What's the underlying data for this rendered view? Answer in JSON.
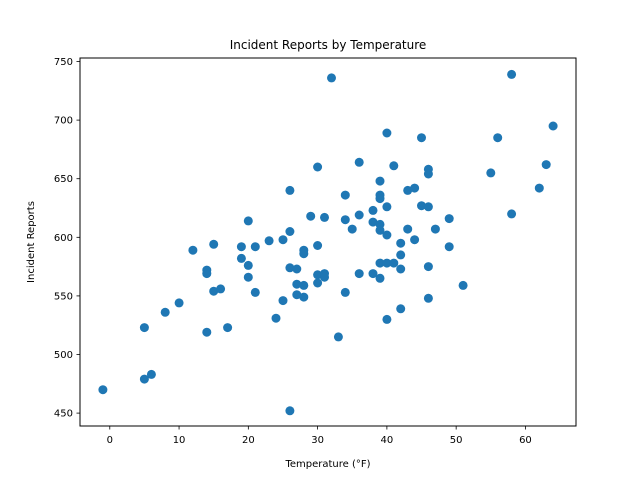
{
  "chart_data": {
    "type": "scatter",
    "title": "Incident Reports by Temperature",
    "xlabel": "Temperature (°F)",
    "ylabel": "Incident Reports",
    "xlim": [
      -4.3,
      67.3
    ],
    "ylim": [
      439,
      753
    ],
    "xticks": [
      0,
      10,
      20,
      30,
      40,
      50,
      60
    ],
    "yticks": [
      450,
      500,
      550,
      600,
      650,
      700,
      750
    ],
    "grid": false,
    "marker_color": "#1f77b4",
    "series": [
      {
        "points": [
          {
            "x": -1,
            "y": 470
          },
          {
            "x": 5,
            "y": 523
          },
          {
            "x": 5,
            "y": 479
          },
          {
            "x": 6,
            "y": 483
          },
          {
            "x": 8,
            "y": 536
          },
          {
            "x": 10,
            "y": 544
          },
          {
            "x": 12,
            "y": 589
          },
          {
            "x": 14,
            "y": 572
          },
          {
            "x": 14,
            "y": 569
          },
          {
            "x": 14,
            "y": 519
          },
          {
            "x": 15,
            "y": 594
          },
          {
            "x": 15,
            "y": 554
          },
          {
            "x": 16,
            "y": 556
          },
          {
            "x": 17,
            "y": 523
          },
          {
            "x": 19,
            "y": 592
          },
          {
            "x": 19,
            "y": 582
          },
          {
            "x": 20,
            "y": 614
          },
          {
            "x": 20,
            "y": 576
          },
          {
            "x": 20,
            "y": 566
          },
          {
            "x": 21,
            "y": 592
          },
          {
            "x": 21,
            "y": 553
          },
          {
            "x": 23,
            "y": 597
          },
          {
            "x": 24,
            "y": 531
          },
          {
            "x": 25,
            "y": 598
          },
          {
            "x": 25,
            "y": 546
          },
          {
            "x": 26,
            "y": 640
          },
          {
            "x": 26,
            "y": 605
          },
          {
            "x": 26,
            "y": 574
          },
          {
            "x": 26,
            "y": 452
          },
          {
            "x": 27,
            "y": 573
          },
          {
            "x": 27,
            "y": 560
          },
          {
            "x": 27,
            "y": 551
          },
          {
            "x": 28,
            "y": 589
          },
          {
            "x": 28,
            "y": 586
          },
          {
            "x": 28,
            "y": 559
          },
          {
            "x": 28,
            "y": 549
          },
          {
            "x": 29,
            "y": 618
          },
          {
            "x": 30,
            "y": 660
          },
          {
            "x": 30,
            "y": 593
          },
          {
            "x": 30,
            "y": 568
          },
          {
            "x": 30,
            "y": 561
          },
          {
            "x": 31,
            "y": 617
          },
          {
            "x": 31,
            "y": 569
          },
          {
            "x": 31,
            "y": 566
          },
          {
            "x": 32,
            "y": 736
          },
          {
            "x": 33,
            "y": 515
          },
          {
            "x": 34,
            "y": 636
          },
          {
            "x": 34,
            "y": 615
          },
          {
            "x": 34,
            "y": 553
          },
          {
            "x": 35,
            "y": 607
          },
          {
            "x": 36,
            "y": 664
          },
          {
            "x": 36,
            "y": 619
          },
          {
            "x": 36,
            "y": 569
          },
          {
            "x": 38,
            "y": 623
          },
          {
            "x": 38,
            "y": 613
          },
          {
            "x": 38,
            "y": 569
          },
          {
            "x": 39,
            "y": 648
          },
          {
            "x": 39,
            "y": 636
          },
          {
            "x": 39,
            "y": 633
          },
          {
            "x": 39,
            "y": 611
          },
          {
            "x": 39,
            "y": 606
          },
          {
            "x": 39,
            "y": 578
          },
          {
            "x": 39,
            "y": 565
          },
          {
            "x": 40,
            "y": 689
          },
          {
            "x": 40,
            "y": 626
          },
          {
            "x": 40,
            "y": 602
          },
          {
            "x": 40,
            "y": 578
          },
          {
            "x": 40,
            "y": 530
          },
          {
            "x": 41,
            "y": 661
          },
          {
            "x": 41,
            "y": 578
          },
          {
            "x": 42,
            "y": 595
          },
          {
            "x": 42,
            "y": 585
          },
          {
            "x": 42,
            "y": 573
          },
          {
            "x": 42,
            "y": 539
          },
          {
            "x": 43,
            "y": 640
          },
          {
            "x": 43,
            "y": 607
          },
          {
            "x": 44,
            "y": 642
          },
          {
            "x": 44,
            "y": 598
          },
          {
            "x": 45,
            "y": 685
          },
          {
            "x": 45,
            "y": 627
          },
          {
            "x": 46,
            "y": 658
          },
          {
            "x": 46,
            "y": 654
          },
          {
            "x": 46,
            "y": 626
          },
          {
            "x": 46,
            "y": 575
          },
          {
            "x": 46,
            "y": 548
          },
          {
            "x": 47,
            "y": 607
          },
          {
            "x": 49,
            "y": 616
          },
          {
            "x": 49,
            "y": 592
          },
          {
            "x": 51,
            "y": 559
          },
          {
            "x": 55,
            "y": 655
          },
          {
            "x": 56,
            "y": 685
          },
          {
            "x": 58,
            "y": 739
          },
          {
            "x": 58,
            "y": 620
          },
          {
            "x": 62,
            "y": 642
          },
          {
            "x": 63,
            "y": 662
          },
          {
            "x": 64,
            "y": 695
          }
        ]
      }
    ]
  }
}
